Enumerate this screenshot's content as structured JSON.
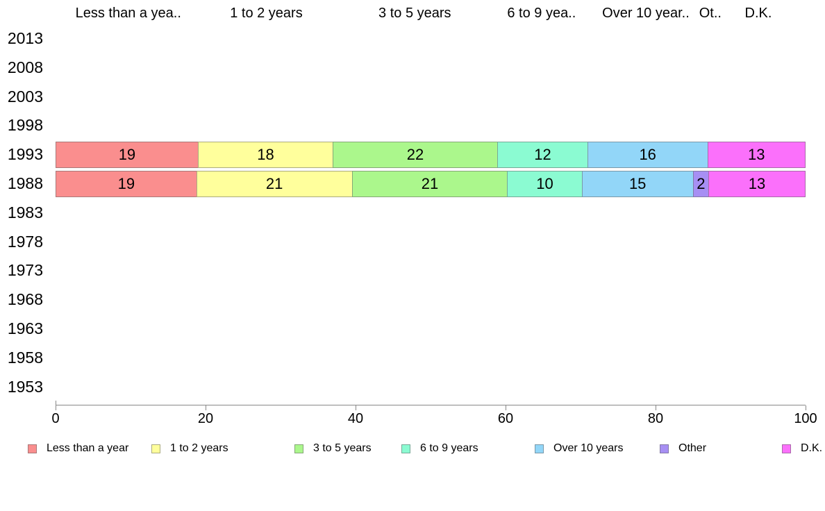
{
  "chart_data": {
    "type": "bar",
    "orientation": "horizontal",
    "stacked": true,
    "title": "",
    "xlabel": "",
    "ylabel": "",
    "xlim": [
      0,
      100
    ],
    "xticks": [
      "0",
      "20",
      "40",
      "60",
      "80",
      "100"
    ],
    "grid": false,
    "legend_position": "bottom",
    "categories": [
      "2013",
      "2008",
      "2003",
      "1998",
      "1993",
      "1988",
      "1983",
      "1978",
      "1973",
      "1968",
      "1963",
      "1958",
      "1953"
    ],
    "series": [
      {
        "name": "Less than a year",
        "header": "Less than a yea..",
        "color": "#FA8E8E",
        "values": {
          "1993": 19,
          "1988": 19
        }
      },
      {
        "name": "1 to 2 years",
        "header": "1 to 2 years",
        "color": "#FFFF9C",
        "values": {
          "1993": 18,
          "1988": 21
        }
      },
      {
        "name": "3 to 5 years",
        "header": "3 to 5 years",
        "color": "#ABF78C",
        "values": {
          "1993": 22,
          "1988": 21
        }
      },
      {
        "name": "6 to 9 years",
        "header": "6 to 9 yea..",
        "color": "#8BFBD2",
        "values": {
          "1993": 12,
          "1988": 10
        }
      },
      {
        "name": "Over 10 years",
        "header": "Over 10 year..",
        "color": "#92D6F8",
        "values": {
          "1993": 16,
          "1988": 15
        }
      },
      {
        "name": "Other",
        "header": "Ot..",
        "color": "#A78FF3",
        "values": {
          "1988": 2
        }
      },
      {
        "name": "D.K.",
        "header": "D.K.",
        "color": "#FB70FB",
        "values": {
          "1993": 13,
          "1988": 13
        }
      }
    ],
    "header_centers_pct": [
      9.7,
      28.1,
      47.9,
      64.8,
      78.7,
      87.3,
      93.7
    ]
  }
}
